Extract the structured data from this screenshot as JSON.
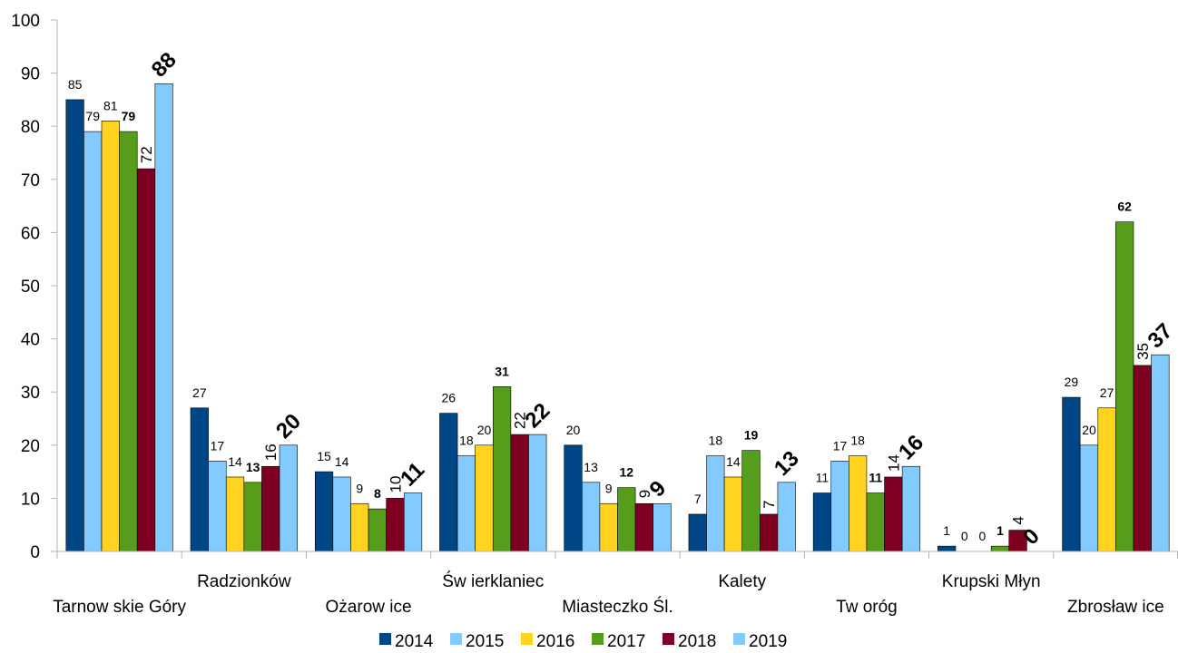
{
  "colors": {
    "2014": "#004586",
    "2015": "#83caff",
    "2016": "#ffd320",
    "2017": "#579d1c",
    "2018": "#7e0021",
    "2019": "#83caff",
    "axis": "#b3b3b3"
  },
  "chart_data": {
    "type": "bar",
    "title": "",
    "xlabel": "",
    "ylabel": "",
    "ylim": [
      0,
      100
    ],
    "yticks": [
      0,
      10,
      20,
      30,
      40,
      50,
      60,
      70,
      80,
      90,
      100
    ],
    "grid": false,
    "legend_position": "bottom",
    "categories": [
      "Tarnow skie Góry",
      "Radzionków",
      "Ożarow ice",
      "Św ierklaniec",
      "Miasteczko Śl.",
      "Kalety",
      "Tw oróg",
      "Krupski Młyn",
      "Zbrosław ice"
    ],
    "series": [
      {
        "name": "2014",
        "values": [
          85,
          27,
          15,
          26,
          20,
          7,
          11,
          1,
          29
        ],
        "label_style": "normal"
      },
      {
        "name": "2015",
        "values": [
          79,
          17,
          14,
          18,
          13,
          18,
          17,
          0,
          20
        ],
        "label_style": "normal"
      },
      {
        "name": "2016",
        "values": [
          81,
          14,
          9,
          20,
          9,
          14,
          18,
          0,
          27
        ],
        "label_style": "normal"
      },
      {
        "name": "2017",
        "values": [
          79,
          13,
          8,
          31,
          12,
          19,
          11,
          1,
          62
        ],
        "label_style": "bold"
      },
      {
        "name": "2018",
        "values": [
          72,
          16,
          10,
          22,
          9,
          7,
          14,
          4,
          35
        ],
        "label_style": "rotated"
      },
      {
        "name": "2019",
        "values": [
          88,
          20,
          11,
          22,
          9,
          13,
          16,
          0,
          37
        ],
        "label_style": "large-bold-rotated"
      }
    ]
  }
}
